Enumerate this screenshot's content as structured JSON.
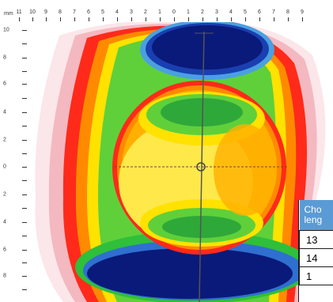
{
  "ruler": {
    "unit": "mm",
    "x_labels": [
      "11",
      "10",
      "9",
      "8",
      "7",
      "6",
      "5",
      "4",
      "3",
      "2",
      "1",
      "0",
      "1",
      "2",
      "3",
      "4",
      "5",
      "6",
      "7",
      "8",
      "9"
    ],
    "y_labels": [
      "10",
      "8",
      "6",
      "4",
      "2",
      "0",
      "2",
      "4",
      "6",
      "8"
    ]
  },
  "table": {
    "header_line1": "Cho",
    "header_line2": "leng",
    "rows": [
      "13",
      "14",
      "1"
    ]
  },
  "colors": {
    "header_bg": "#5b9bd5",
    "deep_blue": "#0a1a7a",
    "green": "#2fbf3a",
    "yellow": "#ffff3c",
    "orange": "#ffb000",
    "red": "#ff2a1a",
    "pink": "#f7c5cc"
  }
}
